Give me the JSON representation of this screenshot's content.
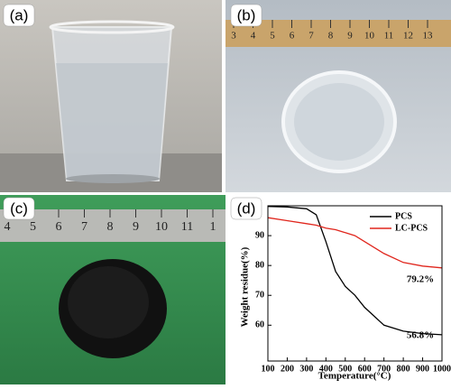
{
  "panels": [
    {
      "label": "(a)"
    },
    {
      "label": "(b)",
      "ruler": [
        "3",
        "4",
        "5",
        "6",
        "7",
        "8",
        "9",
        "10",
        "11",
        "12",
        "13"
      ]
    },
    {
      "label": "(c)",
      "ruler": [
        "4",
        "5",
        "6",
        "7",
        "8",
        "9",
        "10",
        "11",
        "1"
      ]
    },
    {
      "label": "(d)"
    }
  ],
  "chart_data": {
    "type": "line",
    "x_label": "Temperature(°C)",
    "y_label": "Weight residue(%)",
    "x": [
      100,
      200,
      300,
      350,
      400,
      450,
      500,
      550,
      600,
      700,
      800,
      900,
      1000
    ],
    "series": [
      {
        "name": "PCS",
        "color": "#000000",
        "values": [
          99.8,
          99.6,
          99,
          97,
          88,
          78,
          73,
          70,
          66,
          60,
          58,
          57.2,
          56.8
        ]
      },
      {
        "name": "LC-PCS",
        "color": "#e0261d",
        "values": [
          96,
          95,
          94,
          93.5,
          92.5,
          92,
          91,
          90,
          88,
          84,
          81,
          79.8,
          79.2
        ]
      }
    ],
    "annotations": [
      "79.2%",
      "56.8%"
    ],
    "xlim": [
      100,
      1000
    ],
    "xticks": [
      100,
      200,
      300,
      400,
      500,
      600,
      700,
      800,
      900,
      1000
    ],
    "ylim": [
      48,
      100
    ],
    "yticks": [
      60,
      70,
      80,
      90
    ],
    "legend": "top-right"
  }
}
